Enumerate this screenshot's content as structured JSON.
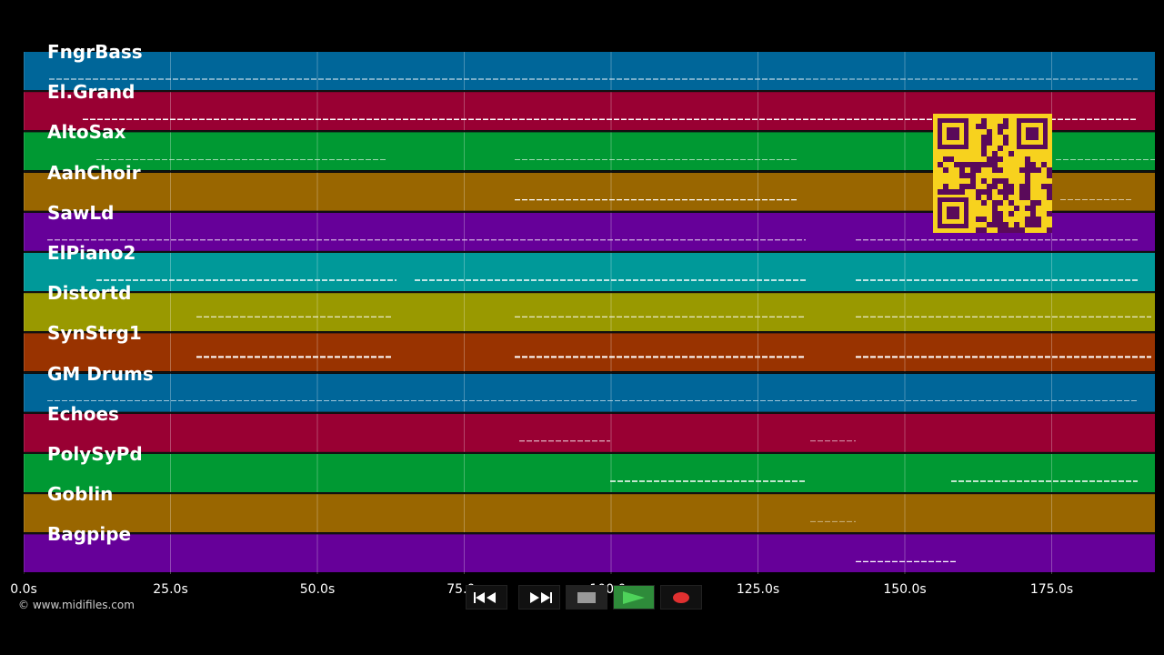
{
  "tracks": [
    {
      "name": "FngrBass",
      "color": "#006699"
    },
    {
      "name": "El.Grand",
      "color": "#990033"
    },
    {
      "name": "AltoSax",
      "color": "#009933"
    },
    {
      "name": "AahChoir",
      "color": "#996600"
    },
    {
      "name": "SawLd",
      "color": "#660099"
    },
    {
      "name": "ElPiano2",
      "color": "#009999"
    },
    {
      "name": "Distortd",
      "color": "#999900"
    },
    {
      "name": "SynStrg1",
      "color": "#993300"
    },
    {
      "name": "GM Drums",
      "color": "#006699"
    },
    {
      "name": "Echoes",
      "color": "#990033"
    },
    {
      "name": "PolySyPd",
      "color": "#009933"
    },
    {
      "name": "Goblin",
      "color": "#996600"
    },
    {
      "name": "Bagpipe",
      "color": "#660099"
    }
  ],
  "timeline": {
    "ticks": [
      "0.0s",
      "25.0s",
      "50.0s",
      "75.0s",
      "100.0s",
      "125.0s",
      "150.0s",
      "175.0s"
    ],
    "tick_values": [
      0,
      25,
      50,
      75,
      100,
      125,
      150,
      175
    ],
    "max_seconds": 192
  },
  "copyright": "© www.midifiles.com",
  "transport": {
    "rewind_icon": "rewind-icon",
    "forward_icon": "fast-forward-icon",
    "stop_icon": "stop-icon",
    "play_icon": "play-icon",
    "record_icon": "record-icon",
    "play_color": "#2e8b3a",
    "record_color": "#e03030"
  },
  "qr_colors": {
    "fg": "#5a0a5a",
    "bg": "#f7d21e"
  }
}
